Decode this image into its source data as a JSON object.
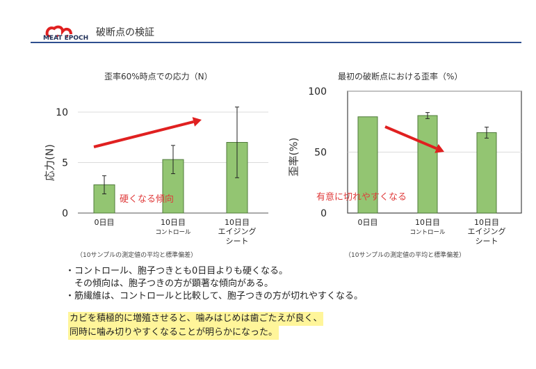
{
  "header": {
    "logo_text": "MEAT EPOCH",
    "title": "破断点の検証"
  },
  "charts": {
    "left": {
      "title": "歪率60%時点での応力（N）",
      "ylabel": "応力(N)",
      "note": "（10サンプルの測定値の平均と標準偏差）",
      "annotation": "硬くなる傾向"
    },
    "right": {
      "title": "最初の破断点における歪率（%）",
      "ylabel": "歪率(%)",
      "note": "（10サンプルの測定値の平均と標準偏差）",
      "annotation": "有意に切れやすくなる"
    }
  },
  "chart_data": [
    {
      "type": "bar",
      "title": "歪率60%時点での応力（N）",
      "ylabel": "応力(N)",
      "ylim": [
        0,
        12
      ],
      "yticks": [
        "0",
        "5",
        "10"
      ],
      "categories": [
        {
          "line1": "0日目",
          "line2": "",
          "line3": ""
        },
        {
          "line1": "10日目",
          "line2": "コントロール",
          "line3": ""
        },
        {
          "line1": "10日目",
          "line2": "エイジング",
          "line3": "シート"
        }
      ],
      "values": [
        2.8,
        5.3,
        7.0
      ],
      "errors": [
        0.9,
        1.4,
        3.5
      ],
      "color": "#93c572"
    },
    {
      "type": "bar",
      "title": "最初の破断点における歪率（%）",
      "ylabel": "歪率(%)",
      "ylim": [
        0,
        100
      ],
      "yticks": [
        "0",
        "50",
        "100"
      ],
      "categories": [
        {
          "line1": "0日目",
          "line2": "",
          "line3": ""
        },
        {
          "line1": "10日目",
          "line2": "コントロール",
          "line3": ""
        },
        {
          "line1": "10日目",
          "line2": "エイジング",
          "line3": "シート"
        }
      ],
      "values": [
        79,
        80,
        66
      ],
      "errors": [
        0,
        2.5,
        4.5
      ],
      "color": "#93c572"
    }
  ],
  "bullets": [
    "・コントロール、胞子つきとも0日目よりも硬くなる。",
    "　その傾向は、胞子つきの方が顕著な傾向がある。",
    "・筋繊維は、コントロールと比較して、胞子つきの方が切れやすくなる。"
  ],
  "conclusion": [
    "カビを積極的に増殖させると、噛みはじめは歯ごたえが良く、",
    "同時に噛み切りやすくなることが明らかになった。"
  ],
  "colors": {
    "accent_line": "#2e4f8f",
    "arrow": "#e02020",
    "annotation": "#e03c3c",
    "highlight": "#fff59a"
  }
}
